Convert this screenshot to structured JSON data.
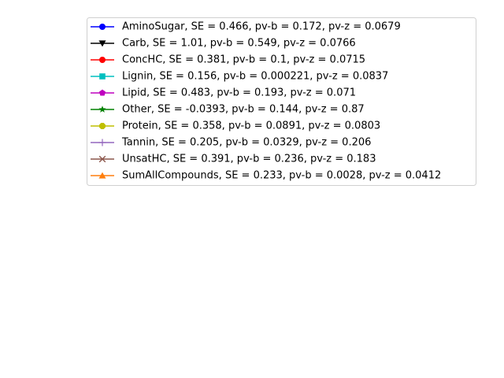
{
  "chart_data": {
    "type": "line",
    "legend_placement": "upper-right",
    "axes_visible": false,
    "series": [
      {
        "name": "AminoSugar,  SE = 0.466,  pv-b = 0.172,  pv-z = 0.0679",
        "color": "#0000ff",
        "marker": "circle"
      },
      {
        "name": "Carb,  SE = 1.01,  pv-b = 0.549,  pv-z = 0.0766",
        "color": "#000000",
        "marker": "triangle-down"
      },
      {
        "name": "ConcHC,  SE = 0.381,  pv-b = 0.1,  pv-z = 0.0715",
        "color": "#ff0000",
        "marker": "circle"
      },
      {
        "name": "Lignin,  SE = 0.156,  pv-b = 0.000221,  pv-z = 0.0837",
        "color": "#00bfbf",
        "marker": "square"
      },
      {
        "name": "Lipid,  SE = 0.483,  pv-b = 0.193,  pv-z = 0.071",
        "color": "#bf00bf",
        "marker": "pentagon"
      },
      {
        "name": "Other,  SE = -0.0393,  pv-b = 0.144,  pv-z = 0.87",
        "color": "#008000",
        "marker": "star"
      },
      {
        "name": "Protein,  SE = 0.358,  pv-b = 0.0891,  pv-z = 0.0803",
        "color": "#bfbf00",
        "marker": "octagon"
      },
      {
        "name": "Tannin,  SE = 0.205,  pv-b = 0.0329,  pv-z = 0.206",
        "color": "#9467bd",
        "marker": "plus"
      },
      {
        "name": "UnsatHC,  SE = 0.391,  pv-b = 0.236,  pv-z = 0.183",
        "color": "#8c564b",
        "marker": "x"
      },
      {
        "name": "SumAllCompounds,  SE = 0.233,  pv-b = 0.0028,  pv-z = 0.0412",
        "color": "#ff7f0e",
        "marker": "triangle-up"
      }
    ]
  }
}
